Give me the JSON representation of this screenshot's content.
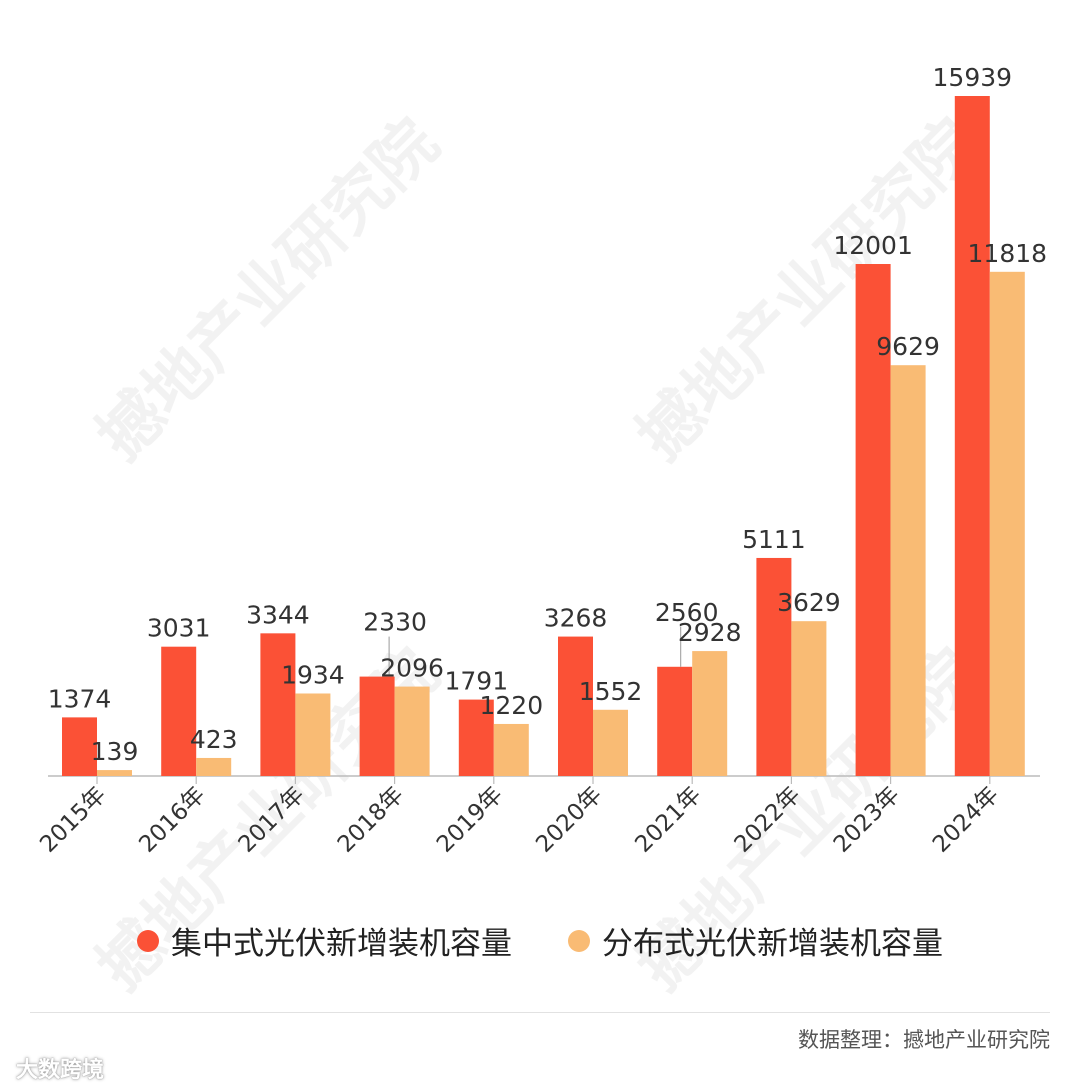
{
  "watermark_text": "撼地产业研究院",
  "colors": {
    "centralized": "#fb5136",
    "distributed": "#f9bb74",
    "axis": "#bbbbbb",
    "label": "#333333"
  },
  "chart_data": {
    "type": "bar",
    "title": "",
    "xlabel": "",
    "ylabel": "",
    "ylim": [
      0,
      16500
    ],
    "grid": false,
    "legend_position": "bottom",
    "categories": [
      "2015年",
      "2016年",
      "2017年",
      "2018年",
      "2019年",
      "2020年",
      "2021年",
      "2022年",
      "2023年",
      "2024年"
    ],
    "series": [
      {
        "name": "集中式光伏新增装机容量",
        "values": [
          1374,
          3031,
          3344,
          2330,
          1791,
          3268,
          2560,
          5111,
          12001,
          15939
        ]
      },
      {
        "name": "分布式光伏新增装机容量",
        "values": [
          139,
          423,
          1934,
          2096,
          1220,
          1552,
          2928,
          3629,
          9629,
          11818
        ]
      }
    ]
  },
  "legend": [
    {
      "label": "集中式光伏新增装机容量"
    },
    {
      "label": "分布式光伏新增装机容量"
    }
  ],
  "source": "数据整理：撼地产业研究院",
  "brand": "大数跨境"
}
